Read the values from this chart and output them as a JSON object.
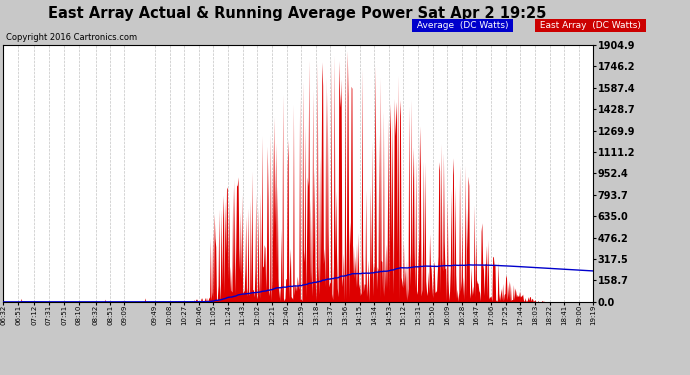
{
  "title": "East Array Actual & Running Average Power Sat Apr 2 19:25",
  "copyright": "Copyright 2016 Cartronics.com",
  "yticks": [
    0.0,
    158.7,
    317.5,
    476.2,
    635.0,
    793.7,
    952.4,
    1111.2,
    1269.9,
    1428.7,
    1587.4,
    1746.2,
    1904.9
  ],
  "ymax": 1904.9,
  "ymin": 0.0,
  "plot_bg": "#ffffff",
  "fig_bg": "#c8c8c8",
  "grid_color": "#aaaaaa",
  "bar_color": "#dd0000",
  "avg_line_color": "#0000cc",
  "xtick_labels": [
    "06:32",
    "06:51",
    "07:12",
    "07:31",
    "07:51",
    "08:10",
    "08:32",
    "08:51",
    "09:09",
    "09:49",
    "10:08",
    "10:27",
    "10:46",
    "11:05",
    "11:24",
    "11:43",
    "12:02",
    "12:21",
    "12:40",
    "12:59",
    "13:18",
    "13:37",
    "13:56",
    "14:15",
    "14:34",
    "14:53",
    "15:12",
    "15:31",
    "15:50",
    "16:09",
    "16:28",
    "16:47",
    "17:06",
    "17:25",
    "17:44",
    "18:03",
    "18:22",
    "18:41",
    "19:00",
    "19:19"
  ]
}
